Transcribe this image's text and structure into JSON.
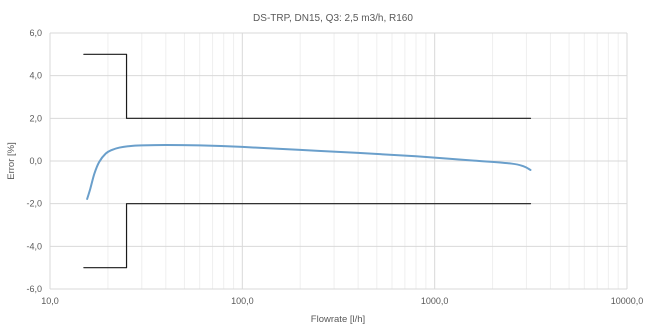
{
  "chart_data": {
    "type": "line",
    "title": "DS-TRP, DN15, Q3: 2,5 m3/h, R160",
    "xlabel": "Flowrate [l/h]",
    "ylabel": "Error [%]",
    "x_scale": "log",
    "xlim": [
      10,
      10000
    ],
    "ylim": [
      -6,
      6
    ],
    "grid": true,
    "x_ticks": [
      10,
      100,
      1000,
      10000
    ],
    "x_tick_labels": [
      "10,0",
      "100,0",
      "1000,0",
      "10000,0"
    ],
    "y_ticks": [
      -6,
      -4,
      -2,
      0,
      2,
      4,
      6
    ],
    "y_tick_labels": [
      "-6,0",
      "-4,0",
      "-2,0",
      "0,0",
      "2,0",
      "4,0",
      "6,0"
    ],
    "series": [
      {
        "color": "#6a9fcb",
        "smooth": true,
        "x": [
          15.6,
          16.2,
          17.0,
          18.0,
          19.5,
          21.0,
          23.0,
          26.0,
          30.0,
          40.0,
          60.0,
          100.0,
          200.0,
          400.0,
          800.0,
          1600.0,
          2500.0,
          2900.0,
          3150.0
        ],
        "y": [
          -1.78,
          -1.3,
          -0.6,
          -0.05,
          0.35,
          0.52,
          0.63,
          0.7,
          0.73,
          0.75,
          0.73,
          0.66,
          0.52,
          0.38,
          0.22,
          0.02,
          -0.12,
          -0.25,
          -0.42
        ]
      },
      {
        "color": "#1a1a1a",
        "smooth": false,
        "x": [
          15,
          25,
          25,
          3150
        ],
        "y": [
          5,
          5,
          2,
          2
        ]
      },
      {
        "color": "#1a1a1a",
        "smooth": false,
        "x": [
          15,
          25,
          25,
          3150
        ],
        "y": [
          -5,
          -5,
          -2,
          -2
        ]
      }
    ]
  }
}
